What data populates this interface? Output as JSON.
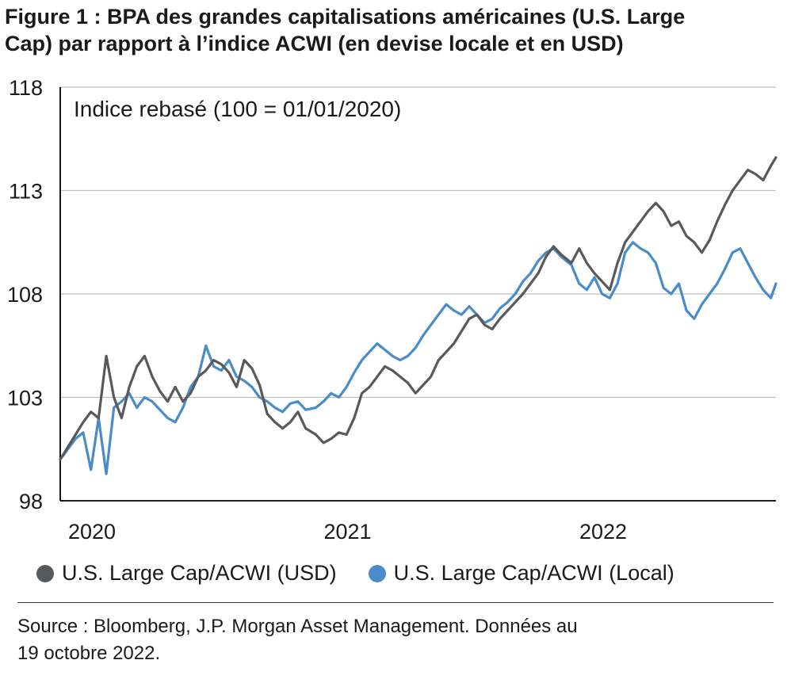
{
  "header": {
    "title_line1": "Figure 1 : BPA des grandes capitalisations américaines (U.S. Large",
    "title_line2": "Cap) par rapport à l’indice ACWI (en devise locale et en USD)"
  },
  "footer": {
    "source_line1": "Source : Bloomberg, J.P. Morgan Asset Management. Données au",
    "source_line2": "19 octobre 2022."
  },
  "chart_data": {
    "type": "line",
    "annotation": "Indice rebasé (100 = 01/01/2020)",
    "ylim": [
      98,
      118
    ],
    "yticks": [
      98,
      103,
      108,
      113,
      118
    ],
    "ytick_labels": [
      "98",
      "103",
      "108",
      "113",
      "118"
    ],
    "xlim": [
      2020.0,
      2022.8
    ],
    "xticks": [
      2020,
      2021,
      2022
    ],
    "xtick_labels": [
      "2020",
      "2021",
      "2022"
    ],
    "grid": "horizontal",
    "legend_position": "bottom",
    "series": [
      {
        "name": "U.S. Large Cap/ACWI (USD)",
        "color": "#58595b",
        "x": [
          2020.0,
          2020.03,
          2020.06,
          2020.09,
          2020.12,
          2020.15,
          2020.18,
          2020.21,
          2020.24,
          2020.27,
          2020.3,
          2020.33,
          2020.36,
          2020.39,
          2020.42,
          2020.45,
          2020.48,
          2020.51,
          2020.54,
          2020.57,
          2020.6,
          2020.63,
          2020.66,
          2020.69,
          2020.72,
          2020.75,
          2020.78,
          2020.81,
          2020.84,
          2020.87,
          2020.9,
          2020.93,
          2020.96,
          2021.0,
          2021.03,
          2021.06,
          2021.09,
          2021.12,
          2021.15,
          2021.18,
          2021.21,
          2021.24,
          2021.27,
          2021.3,
          2021.33,
          2021.36,
          2021.39,
          2021.42,
          2021.45,
          2021.48,
          2021.51,
          2021.54,
          2021.57,
          2021.6,
          2021.63,
          2021.66,
          2021.69,
          2021.72,
          2021.75,
          2021.78,
          2021.81,
          2021.84,
          2021.87,
          2021.9,
          2021.93,
          2021.96,
          2022.0,
          2022.03,
          2022.06,
          2022.09,
          2022.12,
          2022.15,
          2022.18,
          2022.21,
          2022.24,
          2022.27,
          2022.3,
          2022.33,
          2022.36,
          2022.39,
          2022.42,
          2022.45,
          2022.48,
          2022.51,
          2022.54,
          2022.57,
          2022.6,
          2022.63,
          2022.66,
          2022.69,
          2022.72,
          2022.75,
          2022.78,
          2022.8
        ],
        "values": [
          100.0,
          100.6,
          101.2,
          101.8,
          102.3,
          102.0,
          105.0,
          103.0,
          102.0,
          103.5,
          104.5,
          105.0,
          104.0,
          103.3,
          102.8,
          103.5,
          102.8,
          103.2,
          104.0,
          104.3,
          104.8,
          104.6,
          104.2,
          103.5,
          104.8,
          104.4,
          103.6,
          102.2,
          101.8,
          101.5,
          101.8,
          102.3,
          101.5,
          101.2,
          100.8,
          101.0,
          101.3,
          101.2,
          102.0,
          103.2,
          103.5,
          104.0,
          104.5,
          104.3,
          104.0,
          103.7,
          103.2,
          103.6,
          104.0,
          104.8,
          105.2,
          105.6,
          106.2,
          106.8,
          107.0,
          106.5,
          106.3,
          106.8,
          107.2,
          107.6,
          108.0,
          108.5,
          109.0,
          109.8,
          110.3,
          109.9,
          109.5,
          110.2,
          109.5,
          109.0,
          108.6,
          108.2,
          109.5,
          110.5,
          111.0,
          111.5,
          112.0,
          112.4,
          112.0,
          111.3,
          111.5,
          110.8,
          110.5,
          110.0,
          110.6,
          111.5,
          112.3,
          113.0,
          113.5,
          114.0,
          113.8,
          113.5,
          114.2,
          114.6
        ]
      },
      {
        "name": "U.S. Large Cap/ACWI (Local)",
        "color": "#4a8cc9",
        "x": [
          2020.0,
          2020.03,
          2020.06,
          2020.09,
          2020.12,
          2020.15,
          2020.18,
          2020.21,
          2020.24,
          2020.27,
          2020.3,
          2020.33,
          2020.36,
          2020.39,
          2020.42,
          2020.45,
          2020.48,
          2020.51,
          2020.54,
          2020.57,
          2020.6,
          2020.63,
          2020.66,
          2020.69,
          2020.72,
          2020.75,
          2020.78,
          2020.81,
          2020.84,
          2020.87,
          2020.9,
          2020.93,
          2020.96,
          2021.0,
          2021.03,
          2021.06,
          2021.09,
          2021.12,
          2021.15,
          2021.18,
          2021.21,
          2021.24,
          2021.27,
          2021.3,
          2021.33,
          2021.36,
          2021.39,
          2021.42,
          2021.45,
          2021.48,
          2021.51,
          2021.54,
          2021.57,
          2021.6,
          2021.63,
          2021.66,
          2021.69,
          2021.72,
          2021.75,
          2021.78,
          2021.81,
          2021.84,
          2021.87,
          2021.9,
          2021.93,
          2021.96,
          2022.0,
          2022.03,
          2022.06,
          2022.09,
          2022.12,
          2022.15,
          2022.18,
          2022.21,
          2022.24,
          2022.27,
          2022.3,
          2022.33,
          2022.36,
          2022.39,
          2022.42,
          2022.45,
          2022.48,
          2022.51,
          2022.54,
          2022.57,
          2022.6,
          2022.63,
          2022.66,
          2022.69,
          2022.72,
          2022.75,
          2022.78,
          2022.8
        ],
        "values": [
          100.0,
          100.5,
          101.0,
          101.3,
          99.5,
          102.0,
          99.3,
          102.5,
          102.8,
          103.2,
          102.5,
          103.0,
          102.8,
          102.4,
          102.0,
          101.8,
          102.5,
          103.5,
          104.0,
          105.5,
          104.5,
          104.3,
          104.8,
          104.0,
          103.8,
          103.5,
          103.0,
          102.8,
          102.5,
          102.3,
          102.7,
          102.8,
          102.4,
          102.5,
          102.8,
          103.2,
          103.0,
          103.5,
          104.2,
          104.8,
          105.2,
          105.6,
          105.3,
          105.0,
          104.8,
          105.0,
          105.4,
          106.0,
          106.5,
          107.0,
          107.5,
          107.2,
          107.0,
          107.4,
          107.0,
          106.6,
          106.8,
          107.3,
          107.6,
          108.0,
          108.6,
          109.0,
          109.6,
          110.0,
          110.2,
          109.8,
          109.4,
          108.5,
          108.2,
          108.8,
          108.0,
          107.8,
          108.5,
          110.0,
          110.5,
          110.2,
          110.0,
          109.5,
          108.3,
          108.0,
          108.5,
          107.2,
          106.8,
          107.5,
          108.0,
          108.5,
          109.2,
          110.0,
          110.2,
          109.5,
          108.8,
          108.2,
          107.8,
          108.5
        ]
      }
    ]
  }
}
